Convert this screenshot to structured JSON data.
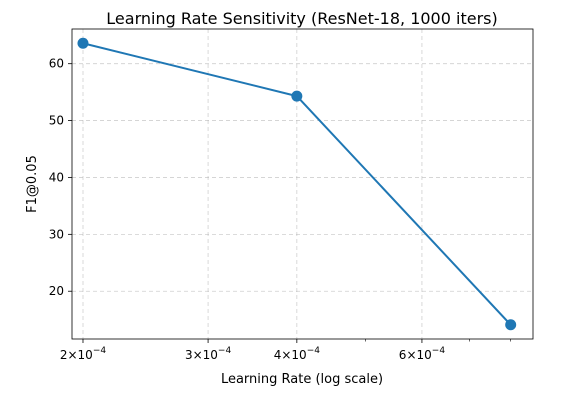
{
  "chart_data": {
    "type": "line",
    "title": "Learning Rate Sensitivity (ResNet-18, 1000 iters)",
    "xlabel": "Learning Rate (log scale)",
    "ylabel": "F1@0.05",
    "xscale": "log",
    "x": [
      0.0002,
      0.0004,
      0.0008
    ],
    "series": [
      {
        "values": [
          63.6,
          54.3,
          14.1
        ],
        "color": "#1f77b4"
      }
    ],
    "xlim": [
      0.000193,
      0.00086
    ],
    "ylim": [
      11.6,
      66.1
    ],
    "x_ticks": [
      {
        "value": 0.0002,
        "mantissa": "2",
        "base": "10",
        "exponent": "−4"
      },
      {
        "value": 0.0003,
        "mantissa": "3",
        "base": "10",
        "exponent": "−4"
      },
      {
        "value": 0.0004,
        "mantissa": "4",
        "base": "10",
        "exponent": "−4"
      },
      {
        "value": 0.0006,
        "mantissa": "6",
        "base": "10",
        "exponent": "−4"
      }
    ],
    "x_minor_ticks": [
      0.0005,
      0.0007,
      0.0008
    ],
    "y_ticks": [
      "20",
      "30",
      "40",
      "50",
      "60"
    ],
    "grid": true,
    "legend": false
  }
}
